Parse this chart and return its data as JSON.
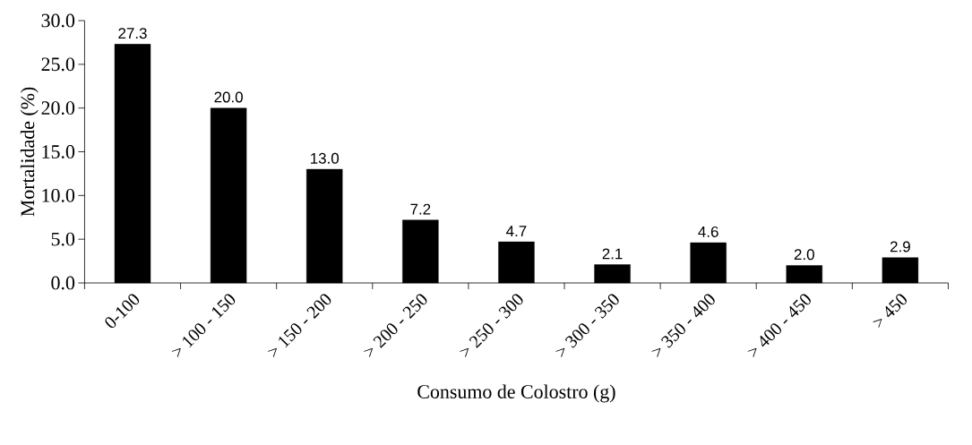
{
  "chart_data": {
    "type": "bar",
    "xlabel": "Consumo de Colostro (g)",
    "ylabel": "Mortalidade (%)",
    "categories": [
      "0-100",
      "> 100 - 150",
      "> 150 - 200",
      "> 200 - 250",
      "> 250 - 300",
      "> 300 - 350",
      "> 350 - 400",
      "> 400 - 450",
      "> 450"
    ],
    "values": [
      27.3,
      20.0,
      13.0,
      7.2,
      4.7,
      2.1,
      4.6,
      2.0,
      2.9
    ],
    "value_labels": [
      "27.3",
      "20.0",
      "13.0",
      "7.2",
      "4.7",
      "2.1",
      "4.6",
      "2.0",
      "2.9"
    ],
    "color": "#000000",
    "ylim": [
      0,
      30
    ],
    "yticks": [
      {
        "value": 0,
        "label": "0.0"
      },
      {
        "value": 5,
        "label": "5.0"
      },
      {
        "value": 10,
        "label": "10.0"
      },
      {
        "value": 15,
        "label": "15.0"
      },
      {
        "value": 20,
        "label": "20.0"
      },
      {
        "value": 25,
        "label": "25.0"
      },
      {
        "value": 30,
        "label": "30.0"
      }
    ],
    "grid": false
  }
}
